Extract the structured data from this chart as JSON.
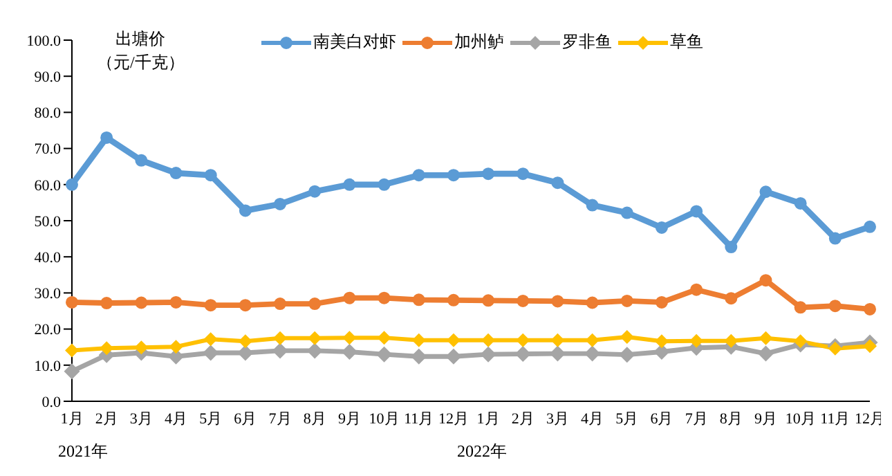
{
  "chart_data": {
    "type": "line",
    "ylabel": "出塘价（元/千克）",
    "categories": [
      "1月",
      "2月",
      "3月",
      "4月",
      "5月",
      "6月",
      "7月",
      "8月",
      "9月",
      "10月",
      "11月",
      "12月",
      "1月",
      "2月",
      "3月",
      "4月",
      "5月",
      "6月",
      "7月",
      "8月",
      "9月",
      "10月",
      "11月",
      "12月"
    ],
    "annotations": [
      "2021年",
      "2022年"
    ],
    "ylim": [
      0,
      100
    ],
    "yticks": [
      {
        "value": 0,
        "label": "0.0"
      },
      {
        "value": 10,
        "label": "10.0"
      },
      {
        "value": 20,
        "label": "20.0"
      },
      {
        "value": 30,
        "label": "30.0"
      },
      {
        "value": 40,
        "label": "40.0"
      },
      {
        "value": 50,
        "label": "50.0"
      },
      {
        "value": 60,
        "label": "60.0"
      },
      {
        "value": 70,
        "label": "70.0"
      },
      {
        "value": 80,
        "label": "80.0"
      },
      {
        "value": 90,
        "label": "90.0"
      },
      {
        "value": 100,
        "label": "100.0"
      }
    ],
    "grid": false,
    "legend": "top",
    "line_style": "solid",
    "series": [
      {
        "name": "南美白对虾",
        "color": "#5b9bd5",
        "marker": "circle",
        "values": [
          60,
          73,
          66.7,
          63.2,
          62.6,
          52.8,
          54.6,
          58.1,
          60,
          60,
          62.6,
          62.6,
          63,
          63,
          60.5,
          54.3,
          52.2,
          48.1,
          52.6,
          42.7,
          58,
          54.8,
          45.1,
          48.3
        ]
      },
      {
        "name": "加州鲈",
        "color": "#ed7d31",
        "marker": "circle",
        "values": [
          27.4,
          27.2,
          27.3,
          27.4,
          26.6,
          26.6,
          27,
          27,
          28.6,
          28.6,
          28.1,
          28,
          27.9,
          27.8,
          27.7,
          27.3,
          27.8,
          27.4,
          30.9,
          28.5,
          33.5,
          26,
          26.4,
          25.5
        ]
      },
      {
        "name": "罗非鱼",
        "color": "#a5a5a5",
        "marker": "diamond",
        "values": [
          8.3,
          12.8,
          13.4,
          12.4,
          13.4,
          13.4,
          14,
          14,
          13.7,
          13,
          12.4,
          12.4,
          13,
          13.1,
          13.2,
          13.2,
          12.9,
          13.7,
          14.8,
          15.1,
          13.2,
          15.7,
          15.3,
          16.3
        ]
      },
      {
        "name": "草鱼",
        "color": "#ffc000",
        "marker": "diamond",
        "values": [
          14.1,
          14.7,
          14.9,
          15.1,
          17.2,
          16.6,
          17.5,
          17.5,
          17.6,
          17.6,
          16.9,
          16.9,
          16.9,
          16.9,
          16.9,
          16.9,
          17.8,
          16.6,
          16.7,
          16.7,
          17.5,
          16.6,
          14.6,
          15.3
        ]
      }
    ]
  }
}
